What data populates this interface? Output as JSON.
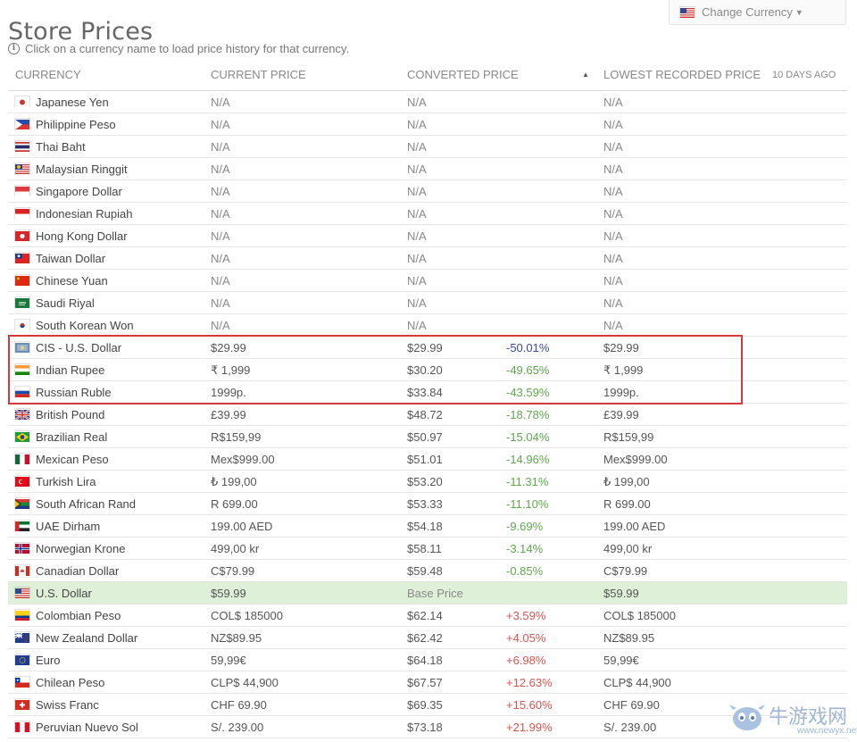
{
  "page": {
    "title": "Store Prices",
    "change_currency_label": "Change Currency",
    "hint": "Click on a currency name to load price history for that currency."
  },
  "table": {
    "headers": {
      "currency": "CURRENCY",
      "current_price": "CURRENT PRICE",
      "converted_price": "CONVERTED PRICE",
      "lowest_price": "LOWEST RECORDED PRICE",
      "age": "10 DAYS AGO"
    },
    "rows": [
      {
        "flag": "jp",
        "name": "Japanese Yen",
        "current": "N/A",
        "converted": "N/A",
        "pct": "",
        "lowest": "N/A"
      },
      {
        "flag": "ph",
        "name": "Philippine Peso",
        "current": "N/A",
        "converted": "N/A",
        "pct": "",
        "lowest": "N/A"
      },
      {
        "flag": "th",
        "name": "Thai Baht",
        "current": "N/A",
        "converted": "N/A",
        "pct": "",
        "lowest": "N/A"
      },
      {
        "flag": "my",
        "name": "Malaysian Ringgit",
        "current": "N/A",
        "converted": "N/A",
        "pct": "",
        "lowest": "N/A"
      },
      {
        "flag": "sg",
        "name": "Singapore Dollar",
        "current": "N/A",
        "converted": "N/A",
        "pct": "",
        "lowest": "N/A"
      },
      {
        "flag": "id",
        "name": "Indonesian Rupiah",
        "current": "N/A",
        "converted": "N/A",
        "pct": "",
        "lowest": "N/A"
      },
      {
        "flag": "hk",
        "name": "Hong Kong Dollar",
        "current": "N/A",
        "converted": "N/A",
        "pct": "",
        "lowest": "N/A"
      },
      {
        "flag": "tw",
        "name": "Taiwan Dollar",
        "current": "N/A",
        "converted": "N/A",
        "pct": "",
        "lowest": "N/A"
      },
      {
        "flag": "cn",
        "name": "Chinese Yuan",
        "current": "N/A",
        "converted": "N/A",
        "pct": "",
        "lowest": "N/A"
      },
      {
        "flag": "sa",
        "name": "Saudi Riyal",
        "current": "N/A",
        "converted": "N/A",
        "pct": "",
        "lowest": "N/A"
      },
      {
        "flag": "kr",
        "name": "South Korean Won",
        "current": "N/A",
        "converted": "N/A",
        "pct": "",
        "lowest": "N/A"
      },
      {
        "flag": "cis",
        "name": "CIS - U.S. Dollar",
        "current": "$29.99",
        "converted": "$29.99",
        "pct": "-50.01%",
        "lowest": "$29.99"
      },
      {
        "flag": "in",
        "name": "Indian Rupee",
        "current": "₹ 1,999",
        "converted": "$30.20",
        "pct": "-49.65%",
        "lowest": "₹ 1,999"
      },
      {
        "flag": "ru",
        "name": "Russian Ruble",
        "current": "1999p.",
        "converted": "$33.84",
        "pct": "-43.59%",
        "lowest": "1999p."
      },
      {
        "flag": "gb",
        "name": "British Pound",
        "current": "£39.99",
        "converted": "$48.72",
        "pct": "-18.78%",
        "lowest": "£39.99"
      },
      {
        "flag": "br",
        "name": "Brazilian Real",
        "current": "R$159,99",
        "converted": "$50.97",
        "pct": "-15.04%",
        "lowest": "R$159,99"
      },
      {
        "flag": "mx",
        "name": "Mexican Peso",
        "current": "Mex$999.00",
        "converted": "$51.01",
        "pct": "-14.96%",
        "lowest": "Mex$999.00"
      },
      {
        "flag": "tr",
        "name": "Turkish Lira",
        "current": "₺ 199,00",
        "converted": "$53.20",
        "pct": "-11.31%",
        "lowest": "₺ 199,00"
      },
      {
        "flag": "za",
        "name": "South African Rand",
        "current": "R 699.00",
        "converted": "$53.33",
        "pct": "-11.10%",
        "lowest": "R 699.00"
      },
      {
        "flag": "ae",
        "name": "UAE Dirham",
        "current": "199.00 AED",
        "converted": "$54.18",
        "pct": "-9.69%",
        "lowest": "199.00 AED"
      },
      {
        "flag": "no",
        "name": "Norwegian Krone",
        "current": "499,00 kr",
        "converted": "$58.11",
        "pct": "-3.14%",
        "lowest": "499,00 kr"
      },
      {
        "flag": "ca",
        "name": "Canadian Dollar",
        "current": "C$79.99",
        "converted": "$59.48",
        "pct": "-0.85%",
        "lowest": "C$79.99"
      },
      {
        "flag": "us",
        "name": "U.S. Dollar",
        "current": "$59.99",
        "converted": "Base Price",
        "pct": "",
        "lowest": "$59.99",
        "base": true
      },
      {
        "flag": "co",
        "name": "Colombian Peso",
        "current": "COL$ 185000",
        "converted": "$62.14",
        "pct": "+3.59%",
        "lowest": "COL$ 185000"
      },
      {
        "flag": "nz",
        "name": "New Zealand Dollar",
        "current": "NZ$89.95",
        "converted": "$62.42",
        "pct": "+4.05%",
        "lowest": "NZ$89.95"
      },
      {
        "flag": "eu",
        "name": "Euro",
        "current": "59,99€",
        "converted": "$64.18",
        "pct": "+6.98%",
        "lowest": "59,99€"
      },
      {
        "flag": "cl",
        "name": "Chilean Peso",
        "current": "CLP$ 44,900",
        "converted": "$67.57",
        "pct": "+12.63%",
        "lowest": "CLP$ 44,900"
      },
      {
        "flag": "ch",
        "name": "Swiss Franc",
        "current": "CHF 69.90",
        "converted": "$69.35",
        "pct": "+15.60%",
        "lowest": "CHF 69.90"
      },
      {
        "flag": "pe",
        "name": "Peruvian Nuevo Sol",
        "current": "S/. 239.00",
        "converted": "$73.18",
        "pct": "+21.99%",
        "lowest": "S/. 239.00"
      }
    ]
  },
  "colors": {
    "negative_pct": "#5fa84d",
    "strongest_negative_pct": "#3a4a9a",
    "positive_pct": "#d9534f",
    "base_row_bg": "#dff0d8",
    "highlight_border": "#d9383a"
  },
  "watermark": {
    "text": "牛游戏网",
    "url": "www.newyx.net"
  }
}
